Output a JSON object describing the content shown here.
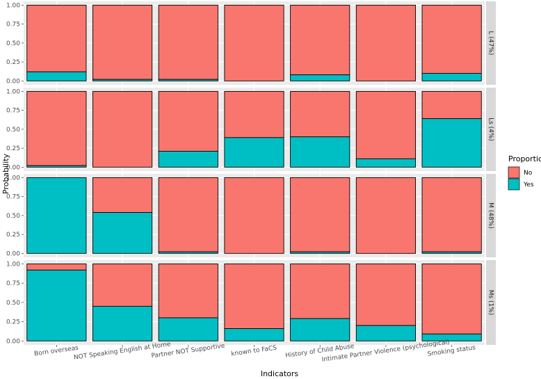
{
  "chart_data": {
    "type": "bar",
    "stacked": true,
    "xlabel": "Indicators",
    "ylabel": "Probability",
    "ylim": [
      0,
      1
    ],
    "y_ticks": [
      "0.00",
      "0.25",
      "0.50",
      "0.75",
      "1.00"
    ],
    "categories": [
      "Born overseas",
      "NOT Speaking English at Home",
      "Partner NOT Supportive",
      "known to FaCS",
      "History of Child Abuse",
      "Intimate Partner Violence (psychological)",
      "Smoking status"
    ],
    "legend": {
      "title": "Proportion",
      "entries": [
        {
          "label": "No",
          "color": "#F8766D"
        },
        {
          "label": "Yes",
          "color": "#00BFC4"
        }
      ]
    },
    "facets": [
      {
        "label": "L (47%)",
        "yes": [
          0.12,
          0.02,
          0.02,
          0.0,
          0.08,
          0.0,
          0.1
        ]
      },
      {
        "label": "Ls (4%)",
        "yes": [
          0.02,
          0.0,
          0.21,
          0.39,
          0.4,
          0.11,
          0.64
        ]
      },
      {
        "label": "M (48%)",
        "yes": [
          1.0,
          0.54,
          0.02,
          0.0,
          0.02,
          0.0,
          0.02
        ]
      },
      {
        "label": "Ms (1%)",
        "yes": [
          0.92,
          0.45,
          0.3,
          0.16,
          0.29,
          0.2,
          0.09
        ]
      }
    ]
  }
}
